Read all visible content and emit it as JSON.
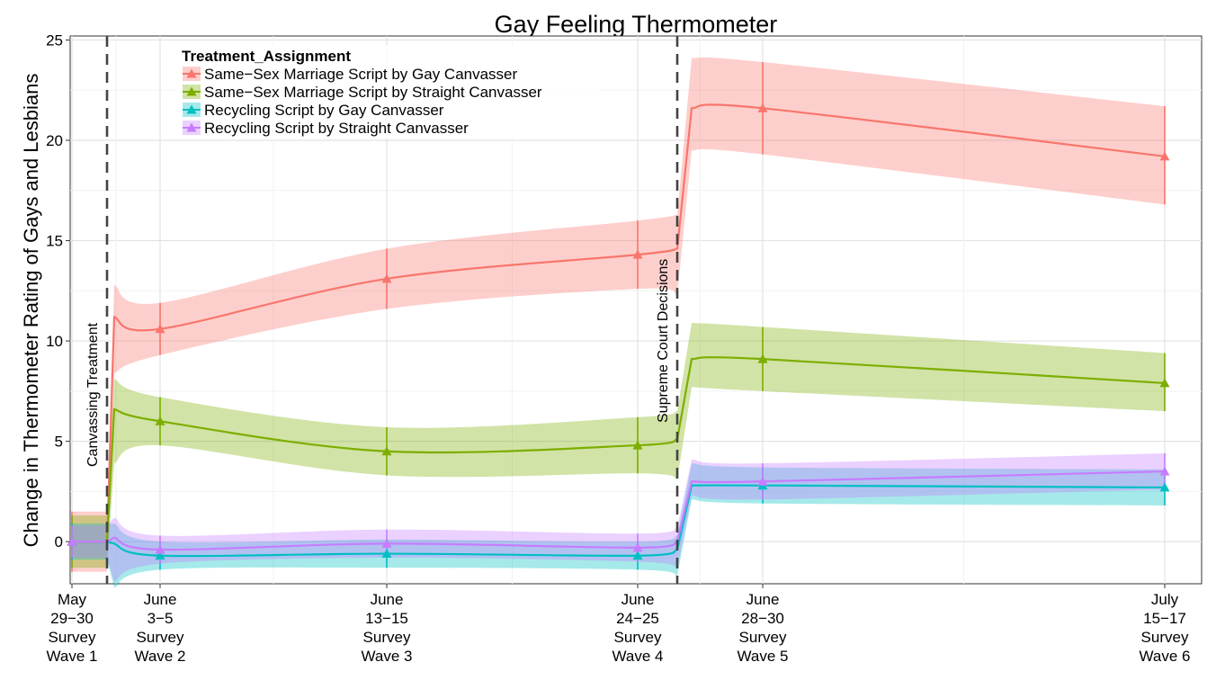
{
  "chart_data": {
    "type": "line",
    "title": "Gay Feeling Thermometer",
    "xlabel": "",
    "ylabel": "Change in Thermometer Rating of Gays and Lesbians",
    "ylim": [
      -2.1,
      25.2
    ],
    "yticks": [
      0,
      5,
      10,
      15,
      20,
      25
    ],
    "grid": true,
    "legend_position": "top-left",
    "legend_title": "Treatment_Assignment",
    "x_ticks": [
      {
        "lines": [
          "May",
          "29−30",
          "Survey",
          "Wave 1"
        ]
      },
      {
        "lines": [
          "June",
          "3−5",
          "Survey",
          "Wave 2"
        ]
      },
      {
        "lines": [
          "June",
          "13−15",
          "Survey",
          "Wave 3"
        ]
      },
      {
        "lines": [
          "June",
          "24−25",
          "Survey",
          "Wave 4"
        ]
      },
      {
        "lines": [
          "June",
          "28−30",
          "Survey",
          "Wave 5"
        ]
      },
      {
        "lines": [
          "July",
          "15−17",
          "Survey",
          "Wave 6"
        ]
      }
    ],
    "events": [
      {
        "label": "Canvassing Treatment"
      },
      {
        "label": "Supreme Court Decisions"
      }
    ],
    "series": [
      {
        "name": "Same−Sex Marriage Script by Gay Canvasser",
        "color": "#F8766D",
        "points": [
          {
            "wave": 1,
            "y": 0.0,
            "lo": -1.5,
            "hi": 1.5
          },
          {
            "wave": 2,
            "y": 10.6,
            "lo": 9.3,
            "hi": 11.9
          },
          {
            "wave": 3,
            "y": 13.1,
            "lo": 11.6,
            "hi": 14.6
          },
          {
            "wave": 4,
            "y": 14.3,
            "lo": 12.6,
            "hi": 16.0
          },
          {
            "wave": 5,
            "y": 21.6,
            "lo": 19.3,
            "hi": 23.9
          },
          {
            "wave": 6,
            "y": 19.2,
            "lo": 16.8,
            "hi": 21.7
          }
        ]
      },
      {
        "name": "Same−Sex Marriage Script by Straight Canvasser",
        "color": "#7CAE00",
        "points": [
          {
            "wave": 1,
            "y": 0.0,
            "lo": -1.3,
            "hi": 1.3
          },
          {
            "wave": 2,
            "y": 6.0,
            "lo": 4.8,
            "hi": 7.2
          },
          {
            "wave": 3,
            "y": 4.5,
            "lo": 3.3,
            "hi": 5.7
          },
          {
            "wave": 4,
            "y": 4.8,
            "lo": 3.4,
            "hi": 6.2
          },
          {
            "wave": 5,
            "y": 9.1,
            "lo": 7.5,
            "hi": 10.7
          },
          {
            "wave": 6,
            "y": 7.9,
            "lo": 6.5,
            "hi": 9.4
          }
        ]
      },
      {
        "name": "Recycling Script by Gay Canvasser",
        "color": "#00BFC4",
        "points": [
          {
            "wave": 1,
            "y": 0.0,
            "lo": -0.9,
            "hi": 0.9
          },
          {
            "wave": 2,
            "y": -0.7,
            "lo": -1.4,
            "hi": 0.0
          },
          {
            "wave": 3,
            "y": -0.6,
            "lo": -1.3,
            "hi": 0.1
          },
          {
            "wave": 4,
            "y": -0.7,
            "lo": -1.4,
            "hi": 0.0
          },
          {
            "wave": 5,
            "y": 2.8,
            "lo": 1.9,
            "hi": 3.7
          },
          {
            "wave": 6,
            "y": 2.7,
            "lo": 1.8,
            "hi": 3.6
          }
        ]
      },
      {
        "name": "Recycling Script by Straight Canvasser",
        "color": "#C77CFF",
        "points": [
          {
            "wave": 1,
            "y": 0.0,
            "lo": -0.8,
            "hi": 0.8
          },
          {
            "wave": 2,
            "y": -0.4,
            "lo": -1.1,
            "hi": 0.3
          },
          {
            "wave": 3,
            "y": -0.1,
            "lo": -0.8,
            "hi": 0.6
          },
          {
            "wave": 4,
            "y": -0.3,
            "lo": -1.0,
            "hi": 0.4
          },
          {
            "wave": 5,
            "y": 3.0,
            "lo": 2.1,
            "hi": 3.9
          },
          {
            "wave": 6,
            "y": 3.5,
            "lo": 2.6,
            "hi": 4.4
          }
        ]
      }
    ]
  }
}
